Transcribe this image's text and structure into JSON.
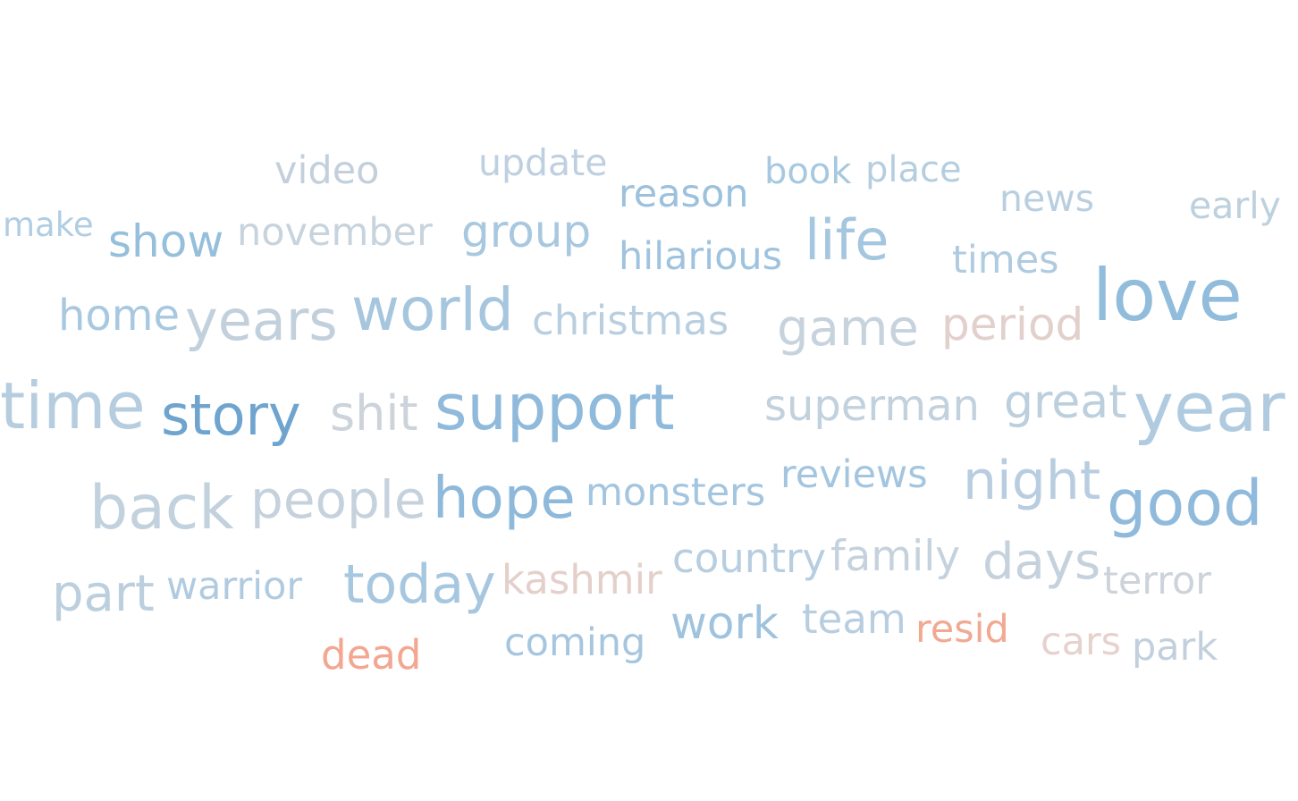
{
  "words": [
    {
      "text": "video",
      "color": "#c3d0dc"
    },
    {
      "text": "update",
      "color": "#bed0e0"
    },
    {
      "text": "book",
      "color": "#a6c8e0"
    },
    {
      "text": "place",
      "color": "#b4cee0"
    },
    {
      "text": "reason",
      "color": "#9cc1dd"
    },
    {
      "text": "news",
      "color": "#b9cfe0"
    },
    {
      "text": "early",
      "color": "#bcd0de"
    },
    {
      "text": "make",
      "color": "#b0cde2"
    },
    {
      "text": "show",
      "color": "#96bfdc"
    },
    {
      "text": "november",
      "color": "#c7d3dd"
    },
    {
      "text": "group",
      "color": "#a8c8e0"
    },
    {
      "text": "hilarious",
      "color": "#9fc3de"
    },
    {
      "text": "life",
      "color": "#a4c6df"
    },
    {
      "text": "times",
      "color": "#afcbe0"
    },
    {
      "text": "love",
      "color": "#92bcdb"
    },
    {
      "text": "home",
      "color": "#a8c8e0"
    },
    {
      "text": "years",
      "color": "#c2d0dc"
    },
    {
      "text": "world",
      "color": "#a6c6de"
    },
    {
      "text": "christmas",
      "color": "#b9cfe0"
    },
    {
      "text": "game",
      "color": "#c6d3dd"
    },
    {
      "text": "period",
      "color": "#e2d0cc"
    },
    {
      "text": "time",
      "color": "#b6cde0"
    },
    {
      "text": "story",
      "color": "#6fa4cf"
    },
    {
      "text": "shit",
      "color": "#ccd3da"
    },
    {
      "text": "support",
      "color": "#90badb"
    },
    {
      "text": "superman",
      "color": "#c1d1dd"
    },
    {
      "text": "great",
      "color": "#bccfdd"
    },
    {
      "text": "year",
      "color": "#b0cbe0"
    },
    {
      "text": "back",
      "color": "#c1d1dd"
    },
    {
      "text": "people",
      "color": "#c5d2dd"
    },
    {
      "text": "hope",
      "color": "#8fb9da"
    },
    {
      "text": "monsters",
      "color": "#a3c5df"
    },
    {
      "text": "reviews",
      "color": "#a3c5df"
    },
    {
      "text": "night",
      "color": "#b8cde0"
    },
    {
      "text": "good",
      "color": "#90badb"
    },
    {
      "text": "part",
      "color": "#bccfde"
    },
    {
      "text": "warrior",
      "color": "#b0cbe0"
    },
    {
      "text": "today",
      "color": "#a6c7df"
    },
    {
      "text": "kashmir",
      "color": "#e4d0ca"
    },
    {
      "text": "country",
      "color": "#b7cde0"
    },
    {
      "text": "family",
      "color": "#c5d2dd"
    },
    {
      "text": "days",
      "color": "#c5d1dc"
    },
    {
      "text": "terror",
      "color": "#ccd3da"
    },
    {
      "text": "work",
      "color": "#9fc3de"
    },
    {
      "text": "team",
      "color": "#b8cee0"
    },
    {
      "text": "resid",
      "color": "#f2a993"
    },
    {
      "text": "cars",
      "color": "#e6d2cc"
    },
    {
      "text": "park",
      "color": "#c2d0dd"
    },
    {
      "text": "dead",
      "color": "#f3a690"
    },
    {
      "text": "coming",
      "color": "#a6c6df"
    }
  ]
}
